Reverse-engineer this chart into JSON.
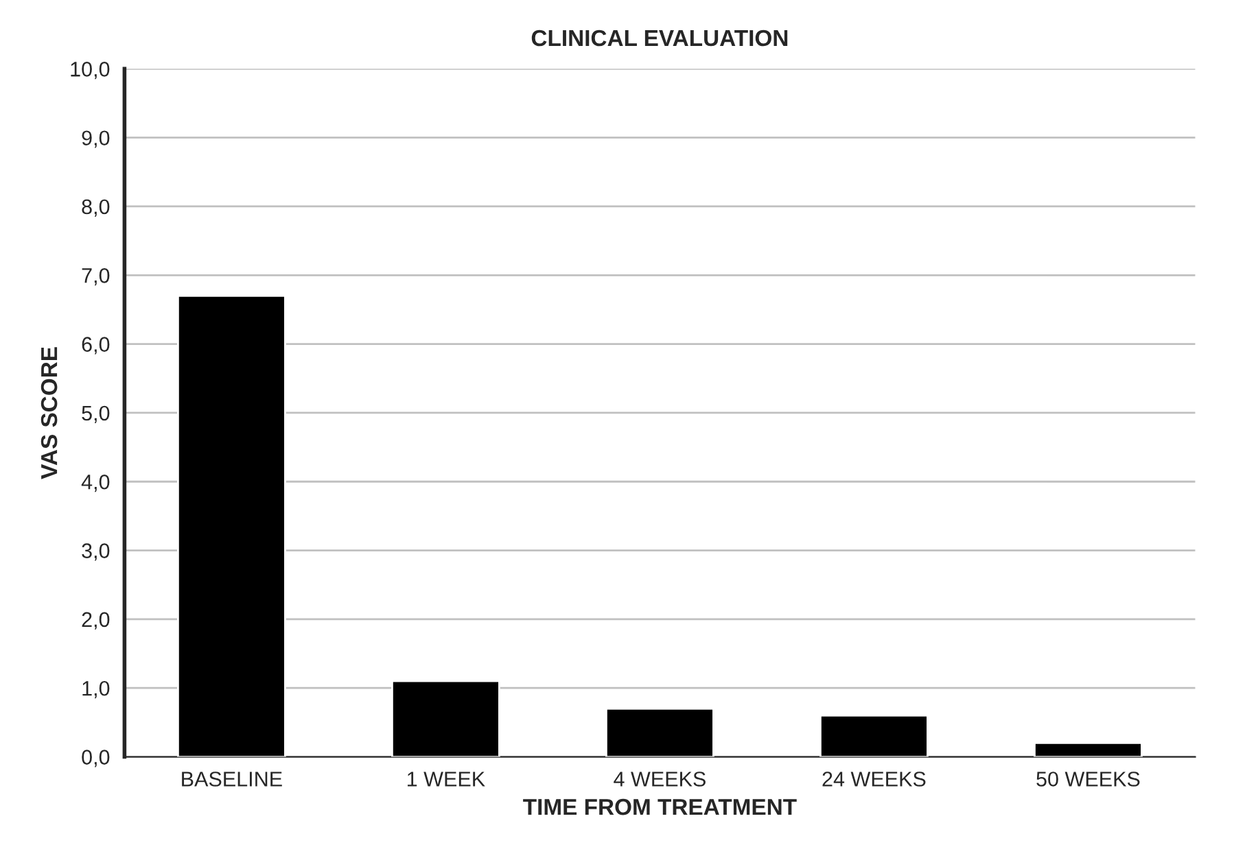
{
  "chart_data": {
    "type": "bar",
    "title": "CLINICAL EVALUATION",
    "xlabel": "TIME FROM TREATMENT",
    "ylabel": "VAS SCORE",
    "categories": [
      "BASELINE",
      "1 WEEK",
      "4 WEEKS",
      "24 WEEKS",
      "50 WEEKS"
    ],
    "values": [
      6.7,
      1.1,
      0.7,
      0.6,
      0.2
    ],
    "color": "#000000",
    "ylim": [
      0,
      10
    ],
    "yticks": [
      {
        "value": 0,
        "label": "0,0"
      },
      {
        "value": 1,
        "label": "1,0"
      },
      {
        "value": 2,
        "label": "2,0"
      },
      {
        "value": 3,
        "label": "3,0"
      },
      {
        "value": 4,
        "label": "4,0"
      },
      {
        "value": 5,
        "label": "5,0"
      },
      {
        "value": 6,
        "label": "6,0"
      },
      {
        "value": 7,
        "label": "7,0"
      },
      {
        "value": 8,
        "label": "8,0"
      },
      {
        "value": 9,
        "label": "9,0"
      },
      {
        "value": 10,
        "label": "10,0"
      }
    ],
    "grid": "y"
  }
}
